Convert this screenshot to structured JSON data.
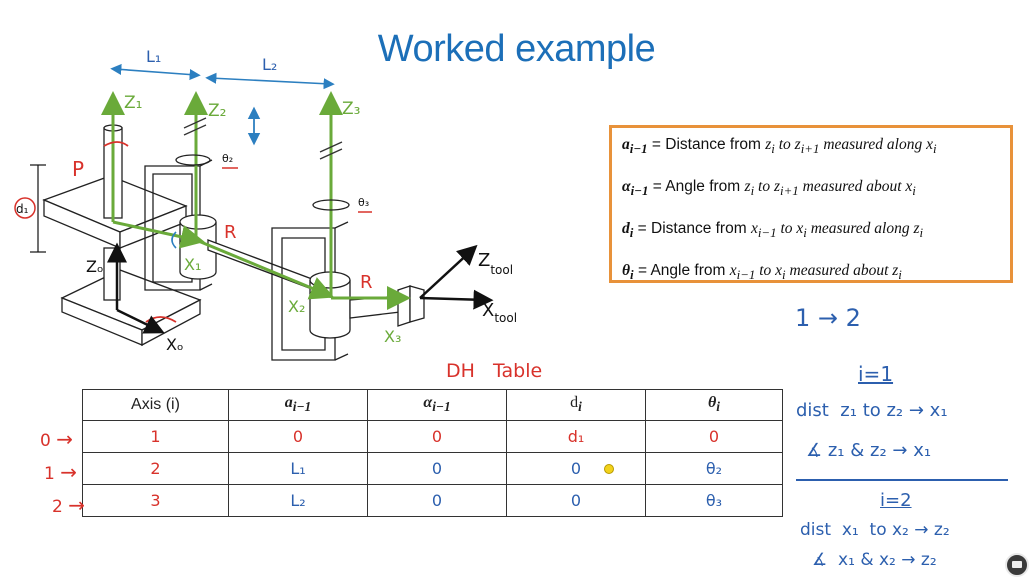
{
  "title": "Worked example",
  "definitions": [
    {
      "symbol": "a",
      "sub": "i−1",
      "text": " = Distance from ",
      "formula": "z<sub>i</sub> to z<sub>i+1</sub> measured along x<sub>i</sub>"
    },
    {
      "symbol": "α",
      "sub": "i−1",
      "text": " = Angle from ",
      "formula": "z<sub>i</sub> to z<sub>i+1</sub> measured about x<sub>i</sub>"
    },
    {
      "symbol": "d",
      "sub": "i",
      "text": " = Distance from ",
      "formula": "x<sub>i−1</sub> to x<sub>i</sub> measured along z<sub>i</sub>"
    },
    {
      "symbol": "θ",
      "sub": "i",
      "text": " = Angle from ",
      "formula": "x<sub>i−1</sub> to x<sub>i</sub> measured about z<sub>i</sub>"
    }
  ],
  "robot_labels": {
    "L1": "L₁",
    "L2": "L₂",
    "Z1": "Z₁",
    "Z2": "Z₂",
    "Z3": "Z₃",
    "P": "P",
    "R1": "R",
    "R2": "R",
    "d1": "d₁",
    "theta2": "θ₂",
    "theta3": "θ₃",
    "Zo": "Zₒ",
    "Xo": "Xₒ",
    "X1": "X₁",
    "X2": "X₂",
    "X3": "X₃",
    "Ztool": "Z",
    "Ztool_sub": "tool",
    "Xtool": "X",
    "Xtool_sub": "tool"
  },
  "table_caption": "DH   Table",
  "dh_table": {
    "headers": [
      "Axis (i)",
      "a",
      "α",
      "d",
      "θ"
    ],
    "header_subs": [
      "",
      "i−1",
      "i−1",
      "i",
      "i"
    ],
    "rows": [
      {
        "axis": "1",
        "a": "0",
        "alpha": "0",
        "d": "d₁",
        "theta": "0"
      },
      {
        "axis": "2",
        "a": "L₁",
        "alpha": "0",
        "d": "0",
        "theta": "θ₂"
      },
      {
        "axis": "3",
        "a": "L₂",
        "alpha": "0",
        "d": "0",
        "theta": "θ₃"
      }
    ],
    "row_markers": [
      "0",
      "1",
      "2"
    ]
  },
  "notes": {
    "step": "1 → 2",
    "i1": "i=1",
    "i1_dist": "dist  z₁ to z₂ → x₁",
    "i1_angle": "∡ z₁ & z₂ → x₁",
    "i2": "i=2",
    "i2_dist": "dist  x₁  to x₂ → z₂",
    "i2_angle": "∡  x₁ & x₂ → z₂"
  },
  "colors": {
    "title": "#1c6fb8",
    "box_border": "#e8923a",
    "red_ink": "#d8322b",
    "blue_ink": "#2c5fae",
    "green_frame": "#6aaa3a"
  }
}
